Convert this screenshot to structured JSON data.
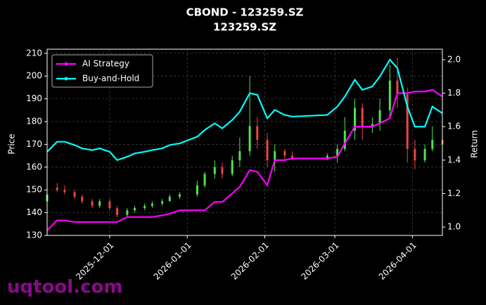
{
  "chart_data": {
    "type": "candlestick",
    "title": "CBOND - 123259.SZ",
    "subtitle": "123259.SZ",
    "ylabel": "Price",
    "y2label": "Return",
    "watermark": "uqtool.com",
    "x": [
      "2025-11-06",
      "2025-11-10",
      "2025-11-13",
      "2025-11-17",
      "2025-11-20",
      "2025-11-24",
      "2025-11-27",
      "2025-12-01",
      "2025-12-04",
      "2025-12-08",
      "2025-12-11",
      "2025-12-15",
      "2025-12-18",
      "2025-12-22",
      "2025-12-25",
      "2025-12-29",
      "2026-01-05",
      "2026-01-08",
      "2026-01-12",
      "2026-01-15",
      "2026-01-19",
      "2026-01-22",
      "2026-01-26",
      "2026-01-29",
      "2026-02-02",
      "2026-02-05",
      "2026-02-09",
      "2026-02-12",
      "2026-02-26",
      "2026-03-02",
      "2026-03-05",
      "2026-03-09",
      "2026-03-12",
      "2026-03-16",
      "2026-03-19",
      "2026-03-23",
      "2026-03-26",
      "2026-03-30",
      "2026-04-02",
      "2026-04-06",
      "2026-04-09",
      "2026-04-13"
    ],
    "open": [
      145,
      151,
      150,
      149,
      147,
      145,
      143,
      145,
      142,
      139,
      141,
      142,
      143,
      144,
      145,
      147,
      148,
      152,
      157,
      160,
      157,
      163,
      167,
      178,
      172,
      163,
      167,
      165,
      164,
      165,
      168,
      176,
      186,
      178,
      179,
      185,
      198,
      192,
      168,
      163,
      168,
      172
    ],
    "high": [
      152,
      153,
      152,
      150,
      148,
      146,
      146,
      146,
      143,
      142,
      143,
      144,
      145,
      146,
      148,
      149,
      154,
      158,
      163,
      162,
      165,
      173,
      200,
      182,
      175,
      170,
      168,
      167,
      166,
      170,
      182,
      190,
      188,
      182,
      190,
      205,
      208,
      195,
      172,
      170,
      178,
      175
    ],
    "low": [
      141,
      149,
      148,
      146,
      144,
      142,
      142,
      141,
      138,
      138,
      140,
      141,
      142,
      143,
      145,
      146,
      147,
      151,
      155,
      155,
      156,
      160,
      165,
      168,
      160,
      158,
      163,
      163,
      163,
      162,
      167,
      172,
      172,
      175,
      176,
      182,
      186,
      162,
      159,
      162,
      167,
      168
    ],
    "close": [
      148,
      150,
      149,
      147,
      145,
      143,
      145,
      142,
      139,
      141,
      142,
      143,
      144,
      145,
      147,
      148,
      152,
      157,
      160,
      157,
      163,
      167,
      178,
      172,
      163,
      167,
      165,
      164,
      165,
      168,
      176,
      186,
      178,
      179,
      185,
      198,
      192,
      168,
      163,
      168,
      172,
      170
    ],
    "up_color": "#4ee44e",
    "down_color": "#ee4444",
    "series": [
      {
        "name": "AI Strategy",
        "color": "#ff00ff",
        "axis": "y2",
        "values": [
          0.98,
          1.04,
          1.04,
          1.03,
          1.03,
          1.03,
          1.03,
          1.03,
          1.03,
          1.06,
          1.06,
          1.06,
          1.06,
          1.07,
          1.08,
          1.1,
          1.1,
          1.1,
          1.15,
          1.15,
          1.2,
          1.24,
          1.34,
          1.33,
          1.25,
          1.4,
          1.4,
          1.41,
          1.41,
          1.42,
          1.5,
          1.6,
          1.6,
          1.6,
          1.62,
          1.65,
          1.8,
          1.8,
          1.81,
          1.81,
          1.82,
          1.78
        ]
      },
      {
        "name": "Buy-and-Hold",
        "color": "#00ffff",
        "axis": "y2",
        "values": [
          1.45,
          1.51,
          1.51,
          1.49,
          1.47,
          1.46,
          1.47,
          1.45,
          1.4,
          1.42,
          1.44,
          1.45,
          1.46,
          1.47,
          1.49,
          1.5,
          1.54,
          1.58,
          1.62,
          1.59,
          1.64,
          1.69,
          1.8,
          1.79,
          1.65,
          1.7,
          1.67,
          1.66,
          1.67,
          1.72,
          1.78,
          1.88,
          1.82,
          1.84,
          1.9,
          2.0,
          1.95,
          1.72,
          1.6,
          1.6,
          1.72,
          1.68
        ]
      }
    ],
    "xlim": [
      "2025-11-06",
      "2026-04-13"
    ],
    "xticks": [
      "2025-12-01",
      "2026-01-01",
      "2026-02-01",
      "2026-03-01",
      "2026-04-01"
    ],
    "ylim": [
      130,
      211.8
    ],
    "yticks": [
      130,
      140,
      150,
      160,
      170,
      180,
      190,
      200,
      210
    ],
    "y2lim": [
      0.95,
      2.063
    ],
    "y2ticks": [
      {
        "value": 1,
        "label": "1.0"
      },
      1.2,
      1.4,
      1.6,
      1.8,
      {
        "value": 2,
        "label": "2.0"
      }
    ],
    "grid": true,
    "legend": "upper left"
  }
}
